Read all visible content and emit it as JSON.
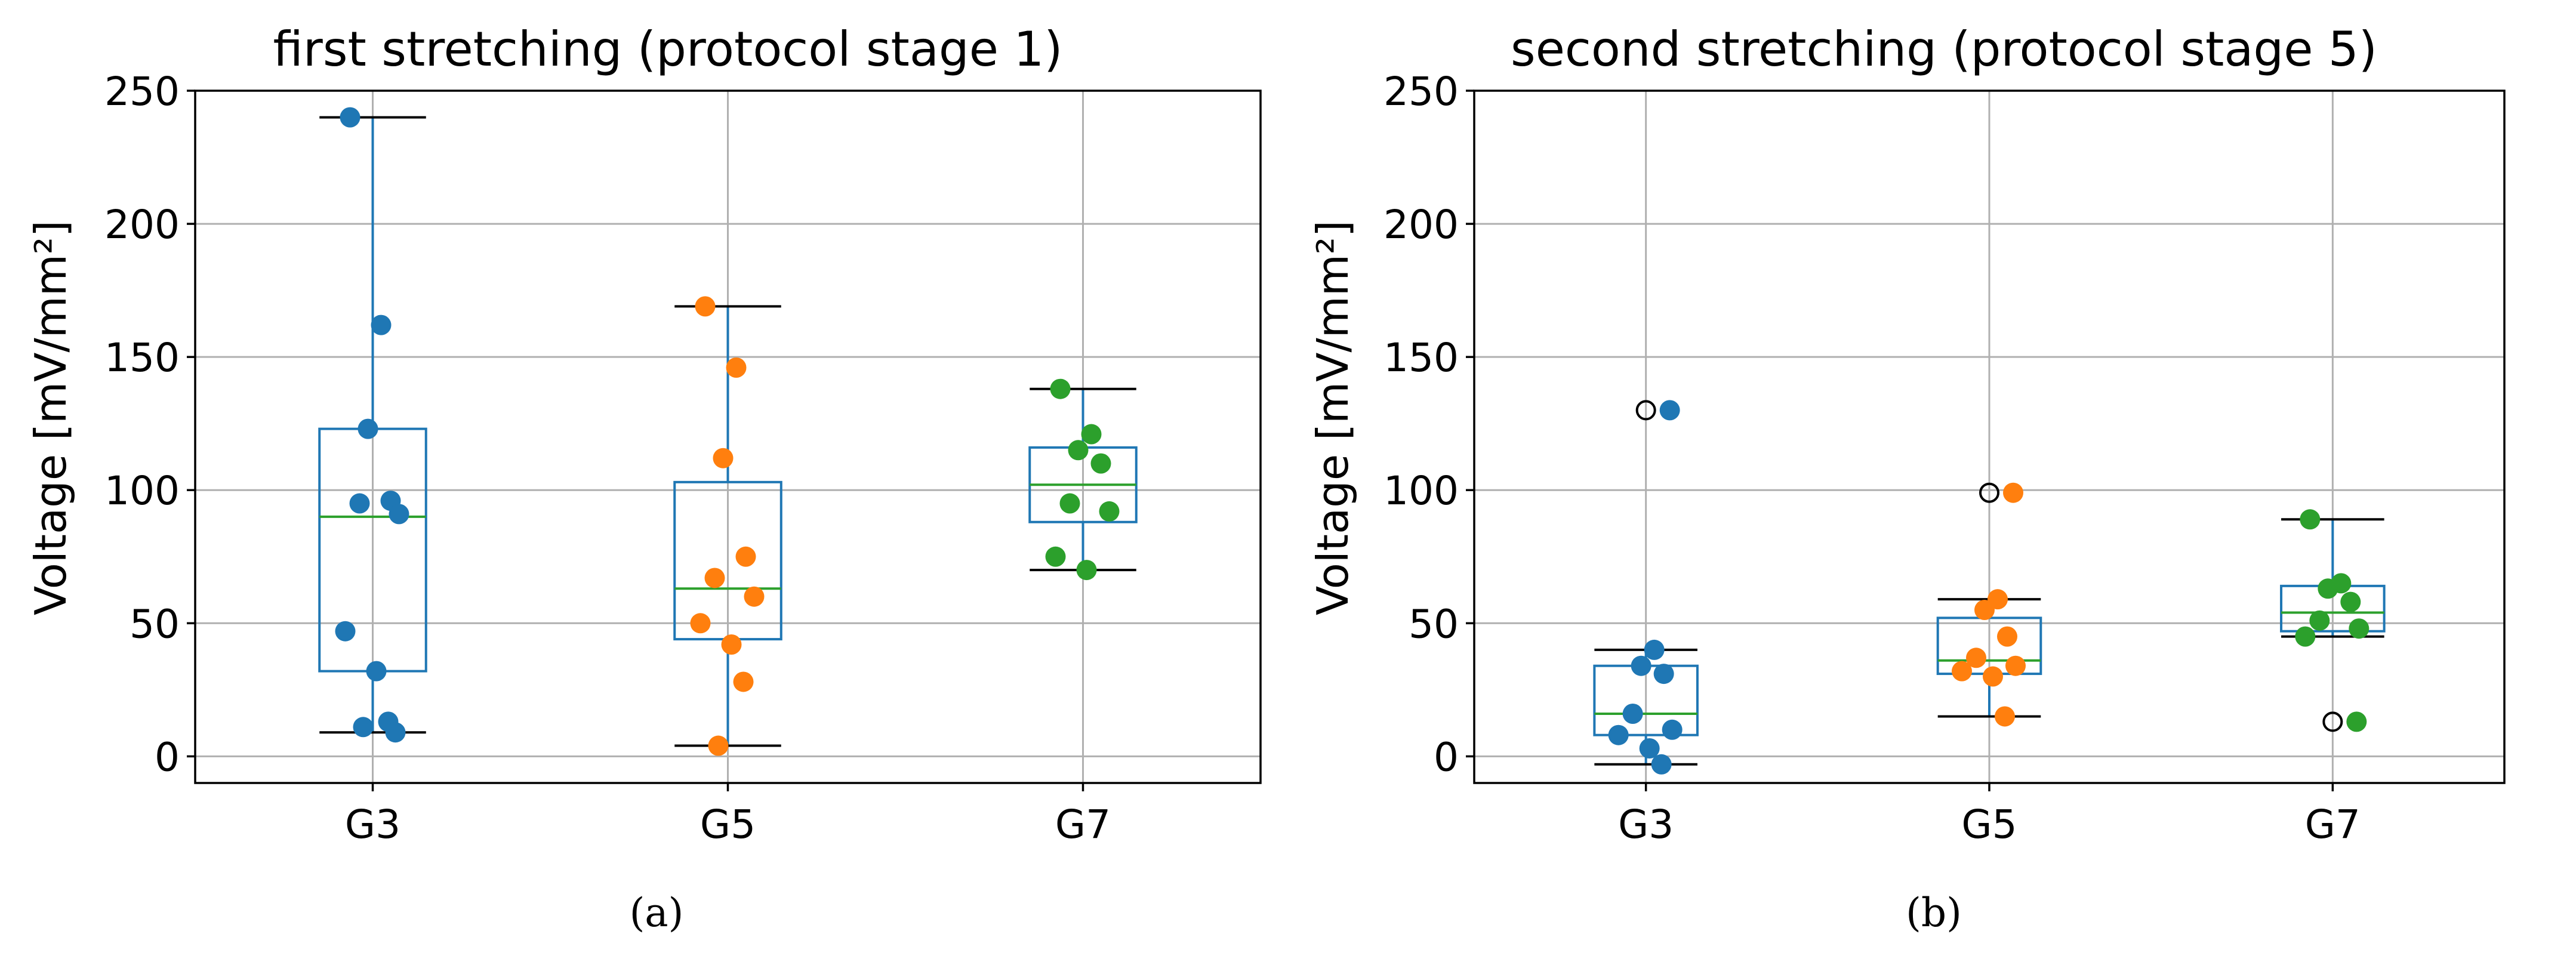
{
  "chart_data": [
    {
      "type": "box",
      "panel_caption": "(a)",
      "title": "first stretching (protocol stage 1)",
      "xlabel": "",
      "ylabel": "Voltage [mV/mm²]",
      "ylim": [
        -10,
        250
      ],
      "yticks": [
        "0",
        "50",
        "100",
        "150",
        "200",
        "250"
      ],
      "categories": [
        "G3",
        "G5",
        "G7"
      ],
      "grid": true,
      "series": [
        {
          "name": "G3",
          "color": "#1f77b4",
          "box": {
            "q1": 32,
            "median": 90,
            "q3": 123,
            "whisker_low": 9,
            "whisker_high": 240
          },
          "fliers": [],
          "points": [
            240,
            162,
            123,
            96,
            95,
            91,
            47,
            32,
            13,
            11,
            9
          ]
        },
        {
          "name": "G5",
          "color": "#ff7f0e",
          "box": {
            "q1": 44,
            "median": 63,
            "q3": 103,
            "whisker_low": 4,
            "whisker_high": 169
          },
          "fliers": [],
          "points": [
            169,
            146,
            112,
            75,
            67,
            60,
            50,
            42,
            28,
            4
          ]
        },
        {
          "name": "G7",
          "color": "#2ca02c",
          "box": {
            "q1": 88,
            "median": 102,
            "q3": 116,
            "whisker_low": 70,
            "whisker_high": 138
          },
          "fliers": [],
          "points": [
            138,
            121,
            115,
            110,
            95,
            92,
            75,
            70
          ]
        }
      ]
    },
    {
      "type": "box",
      "panel_caption": "(b)",
      "title": "second stretching (protocol stage 5)",
      "xlabel": "",
      "ylabel": "Voltage [mV/mm²]",
      "ylim": [
        -10,
        250
      ],
      "yticks": [
        "0",
        "50",
        "100",
        "150",
        "200",
        "250"
      ],
      "categories": [
        "G3",
        "G5",
        "G7"
      ],
      "grid": true,
      "series": [
        {
          "name": "G3",
          "color": "#1f77b4",
          "box": {
            "q1": 8,
            "median": 16,
            "q3": 34,
            "whisker_low": -3,
            "whisker_high": 40
          },
          "fliers": [
            130
          ],
          "points": [
            130,
            40,
            34,
            31,
            16,
            10,
            8,
            3,
            -3
          ]
        },
        {
          "name": "G5",
          "color": "#ff7f0e",
          "box": {
            "q1": 31,
            "median": 36,
            "q3": 52,
            "whisker_low": 15,
            "whisker_high": 59
          },
          "fliers": [
            99
          ],
          "points": [
            99,
            59,
            55,
            45,
            37,
            34,
            32,
            30,
            15
          ]
        },
        {
          "name": "G7",
          "color": "#2ca02c",
          "box": {
            "q1": 47,
            "median": 54,
            "q3": 64,
            "whisker_low": 45,
            "whisker_high": 89
          },
          "fliers": [
            13
          ],
          "points": [
            89,
            65,
            63,
            58,
            51,
            48,
            45,
            13
          ]
        }
      ]
    }
  ]
}
